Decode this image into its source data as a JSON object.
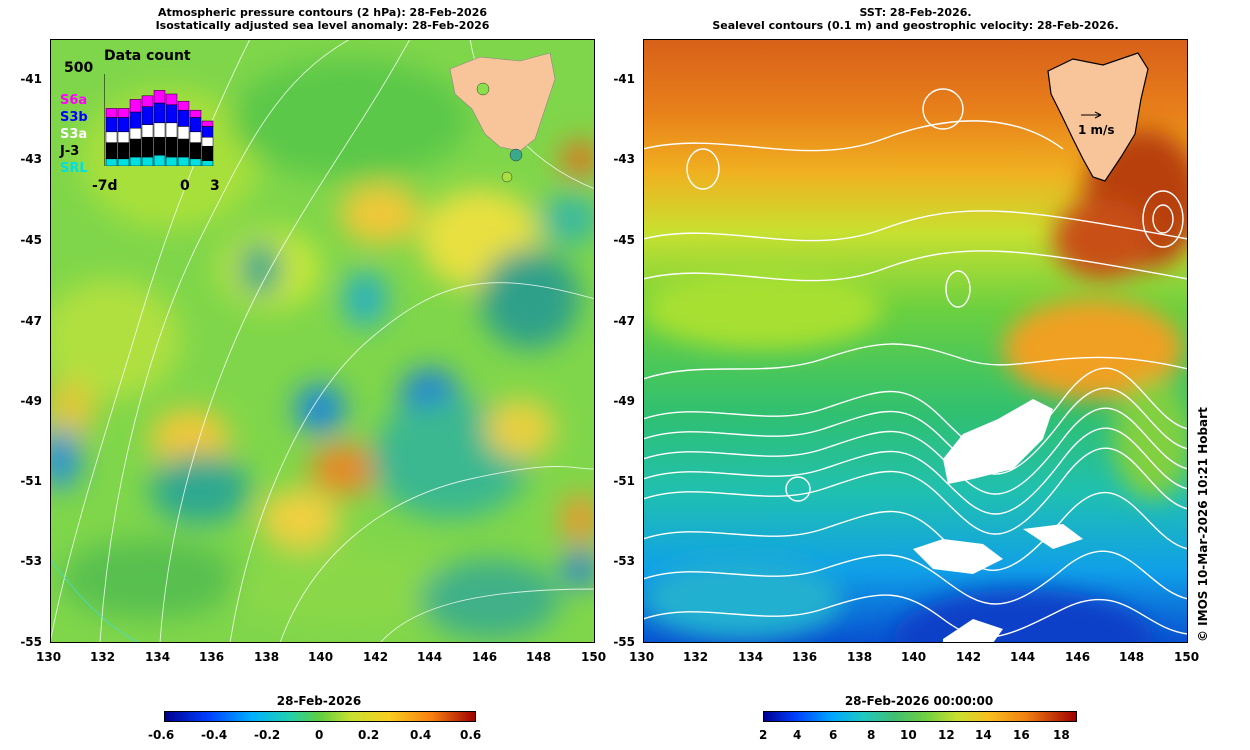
{
  "left_panel": {
    "title_line1": "Atmospheric pressure contours (2 hPa): 28-Feb-2026",
    "title_line2": "Isostatically adjusted sea level anomaly: 28-Feb-2026",
    "inset": {
      "title": "Data count",
      "max_label": "500",
      "x_left": "-7d",
      "x_mid": "0",
      "x_right": "3",
      "satellites": [
        {
          "name": "S6a",
          "color": "#ff00ff"
        },
        {
          "name": "S3b",
          "color": "#0000ff"
        },
        {
          "name": "S3a",
          "color": "#ffffff"
        },
        {
          "name": "J-3",
          "color": "#000000"
        },
        {
          "name": "SRL",
          "color": "#00e0e0"
        }
      ]
    },
    "colorbar": {
      "title": "28-Feb-2026",
      "ticks": [
        "-0.6",
        "-0.4",
        "-0.2",
        "0",
        "0.2",
        "0.4",
        "0.6"
      ]
    }
  },
  "right_panel": {
    "title_line1": "SST: 28-Feb-2026.",
    "title_line2": "Sealevel contours (0.1 m) and geostrophic velocity: 28-Feb-2026.",
    "velocity_label": "1 m/s",
    "colorbar": {
      "title": "28-Feb-2026 00:00:00",
      "ticks": [
        "2",
        "4",
        "6",
        "8",
        "10",
        "12",
        "14",
        "16",
        "18"
      ]
    }
  },
  "axes": {
    "lat_ticks": [
      "-41",
      "-43",
      "-45",
      "-47",
      "-49",
      "-51",
      "-53",
      "-55"
    ],
    "lon_ticks": [
      "130",
      "132",
      "134",
      "136",
      "138",
      "140",
      "142",
      "144",
      "146",
      "148",
      "150"
    ]
  },
  "credit": "© IMOS 10-Mar-2026 10:21 Hobart",
  "colors": {
    "land": "#f8c59b",
    "contour": "#ffffff"
  }
}
